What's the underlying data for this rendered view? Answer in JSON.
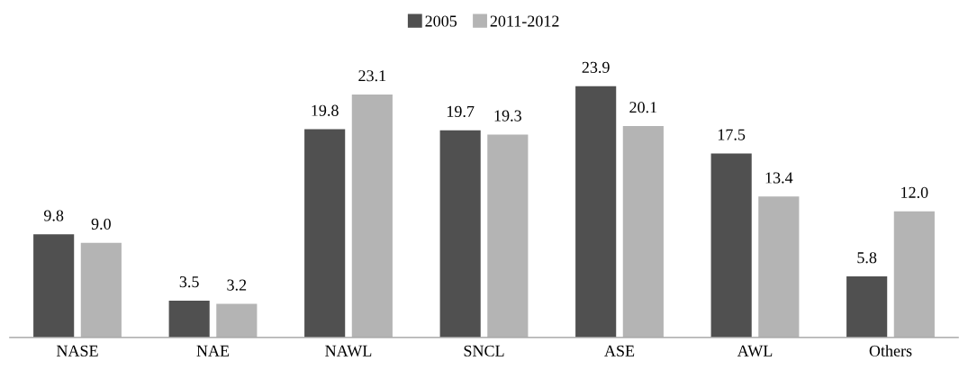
{
  "chart_data": {
    "type": "bar",
    "categories": [
      "NASE",
      "NAE",
      "NAWL",
      "SNCL",
      "ASE",
      "AWL",
      "Others"
    ],
    "series": [
      {
        "name": "2005",
        "color": "#505050",
        "values": [
          9.8,
          3.5,
          19.8,
          19.7,
          23.9,
          17.5,
          5.8
        ],
        "value_labels": [
          "9.8",
          "3.5",
          "19.8",
          "19.7",
          "23.9",
          "17.5",
          "5.8"
        ]
      },
      {
        "name": "2011-2012",
        "color": "#b4b4b4",
        "values": [
          9.0,
          3.2,
          23.1,
          19.3,
          20.1,
          13.4,
          12.0
        ],
        "value_labels": [
          "9.0",
          "3.2",
          "23.1",
          "19.3",
          "20.1",
          "13.4",
          "12.0"
        ]
      }
    ],
    "legend": "top"
  }
}
